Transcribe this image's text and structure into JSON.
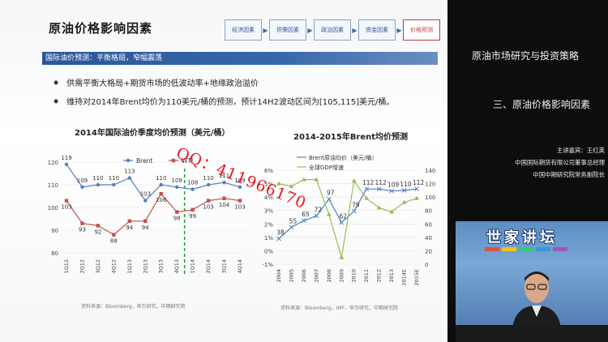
{
  "slide": {
    "title": "原油价格影响因素",
    "flow": [
      "经济因素",
      "供需因素",
      "政治因素",
      "资金因素",
      "价格预测"
    ],
    "banner": "国际油价预测：平衡格局，窄幅震荡",
    "bullets": [
      "供需平衡大格局+期货市场的低波动率+地缘政治溢价",
      "维持对2014年Brent均价为110美元/桶的预测，预计14H2波动区间为[105,115]美元/桶。"
    ],
    "watermark": "QQ：411966170"
  },
  "chart_data": [
    {
      "type": "line",
      "title": "2014年国际油价季度均价预测（美元/桶）",
      "categories": [
        "1Q12",
        "2Q12",
        "3Q12",
        "4Q12",
        "1Q13",
        "2Q13",
        "3Q13",
        "4Q13",
        "1Q14",
        "2Q14",
        "3Q14",
        "4Q14"
      ],
      "series": [
        {
          "name": "Brent",
          "values": [
            119,
            109,
            110,
            110,
            113,
            103,
            110,
            109,
            108,
            110,
            111,
            109
          ],
          "color": "#4f81bd"
        },
        {
          "name": "WTI",
          "values": [
            103,
            93,
            92,
            88,
            94,
            94,
            106,
            98,
            99,
            103,
            104,
            103
          ],
          "color": "#c0504d"
        }
      ],
      "labels_brent": [
        "119",
        "109",
        "110",
        "110",
        "113",
        "103",
        "110",
        "109",
        "108",
        "110",
        "111",
        "109"
      ],
      "labels_wti": [
        "103",
        "93",
        "92",
        "88",
        "94",
        "94",
        "106",
        "98",
        "99",
        "103",
        "104",
        "103"
      ],
      "ylim": [
        80,
        120
      ],
      "yticks": [
        "80",
        "90",
        "100",
        "110",
        "120"
      ],
      "source": "资料来源：Bloomberg，申万研究，中期研究院"
    },
    {
      "type": "line",
      "title": "2014-2015年Brent均价预测",
      "categories": [
        "2004",
        "2005",
        "2006",
        "2007",
        "2008",
        "2009",
        "2010",
        "2011",
        "2012",
        "2013",
        "2014E",
        "2015E"
      ],
      "series": [
        {
          "name": "Brent原油均价（美元/桶）",
          "values": [
            38,
            55,
            65,
            72,
            97,
            62,
            79,
            112,
            112,
            109,
            110,
            112
          ],
          "color": "#4f81bd",
          "axis": "right"
        },
        {
          "name": "全球GDP增速",
          "values": [
            5.0,
            4.8,
            5.3,
            5.3,
            2.7,
            -0.5,
            5.2,
            3.9,
            3.2,
            2.9,
            3.6,
            3.9
          ],
          "color": "#9bbb59",
          "axis": "left"
        }
      ],
      "price_labels": [
        "38",
        "55",
        "65",
        "72",
        "97",
        "62",
        "79",
        "112",
        "112",
        "109",
        "110",
        "112"
      ],
      "left_axis": {
        "ticks": [
          "-1%",
          "0%",
          "1%",
          "2%",
          "3%",
          "4%",
          "5%",
          "6%"
        ],
        "range": [
          -1,
          6
        ]
      },
      "right_axis": {
        "ticks": [
          "0",
          "20",
          "40",
          "60",
          "80",
          "100",
          "120",
          "140"
        ],
        "range": [
          0,
          140
        ]
      },
      "source": "资料来源：Bloomberg，IMF，申万研究，中期研究院"
    }
  ],
  "panel": {
    "title": "原油市场研究与投资策略",
    "subtitle": "三、原油价格影响因素",
    "speaker": "主讲嘉宾：王红英",
    "role1": "中国国际期货有限公司董事总经理",
    "role2": "中国中期研究院常务副院长",
    "logo": "世家讲坛"
  }
}
